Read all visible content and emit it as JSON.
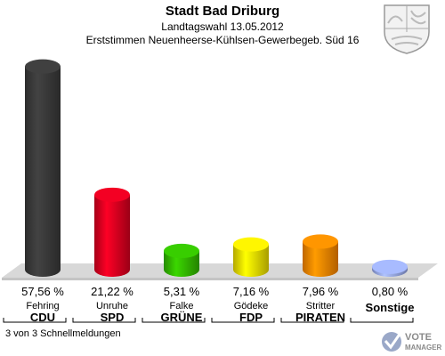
{
  "header": {
    "title": "Stadt Bad Driburg",
    "subtitle": "Landtagswahl 13.05.2012",
    "subtitle2": "Erststimmen Neuenheerse-Kühlsen-Gewerbegeb. Süd 16"
  },
  "chart_data": {
    "type": "bar",
    "categories": [
      "CDU",
      "SPD",
      "GRÜNE",
      "FDP",
      "PIRATEN",
      "Sonstige"
    ],
    "candidates": [
      "Fehring",
      "Unruhe",
      "Falke",
      "Gödeke",
      "Stritter",
      ""
    ],
    "values": [
      57.56,
      21.22,
      5.31,
      7.16,
      7.96,
      0.8
    ],
    "value_labels": [
      "57,56 %",
      "21,22 %",
      "5,31 %",
      "7,16 %",
      "7,96 %",
      "0,80 %"
    ],
    "colors": [
      "#3a3a3a",
      "#dd0020",
      "#33bb00",
      "#f0e000",
      "#ff8800",
      "#99aaee"
    ],
    "ylim": [
      0,
      60
    ],
    "grid": false
  },
  "footer": {
    "status": "3 von 3 Schnellmeldungen"
  },
  "logo": {
    "icon": "vote-checkmark-icon",
    "line1": "VOTE",
    "line2": "MANAGER"
  },
  "crest": {
    "icon": "nrw-coat-of-arms-icon"
  }
}
